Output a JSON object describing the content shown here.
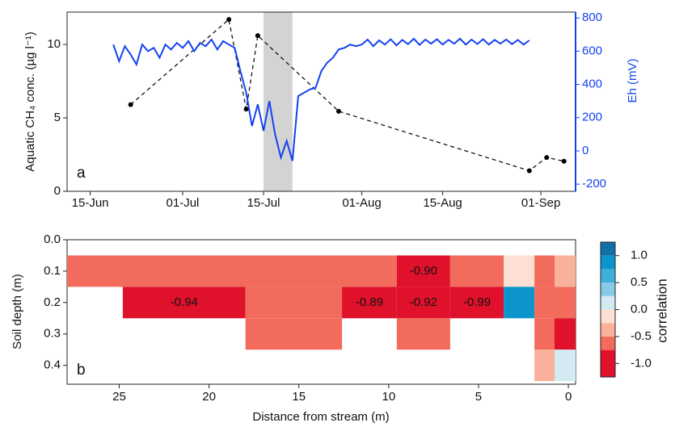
{
  "chart_data": [
    {
      "type": "line",
      "panel_label": "a",
      "y_label": "Aquatic CH₄ conc. (µg l⁻¹)",
      "y2_label": "Eh (mV)",
      "xlim": [
        "11-Jun",
        "07-Sep"
      ],
      "xticks": [
        "15-Jun",
        "01-Jul",
        "15-Jul",
        "01-Aug",
        "15-Aug",
        "01-Sep"
      ],
      "ylim": [
        0,
        12.2
      ],
      "yticks": [
        0,
        5,
        10
      ],
      "y2lim": [
        -243,
        835
      ],
      "y2ticks": [
        -200,
        0,
        200,
        400,
        600,
        800
      ],
      "shaded_span": [
        "15-Jul",
        "20-Jul"
      ],
      "shade_color": "#d3d3d3",
      "series": [
        {
          "color": "#000000",
          "dashed": true,
          "markers": true,
          "axis": "y",
          "x": [
            "22-Jun",
            "09-Jul",
            "12-Jul",
            "14-Jul",
            "28-Jul",
            "30-Aug",
            "02-Sep",
            "05-Sep"
          ],
          "values": [
            5.9,
            11.7,
            5.6,
            10.6,
            5.45,
            1.4,
            2.3,
            2.05
          ]
        },
        {
          "color": "#1443f0",
          "dashed": false,
          "markers": false,
          "axis": "y2",
          "x": [
            "19-Jun",
            "20-Jun",
            "21-Jun",
            "22-Jun",
            "23-Jun",
            "24-Jun",
            "25-Jun",
            "26-Jun",
            "27-Jun",
            "28-Jun",
            "29-Jun",
            "30-Jun",
            "01-Jul",
            "02-Jul",
            "03-Jul",
            "04-Jul",
            "05-Jul",
            "06-Jul",
            "07-Jul",
            "08-Jul",
            "09-Jul",
            "10-Jul",
            "11-Jul",
            "12-Jul",
            "13-Jul",
            "14-Jul",
            "15-Jul",
            "16-Jul",
            "17-Jul",
            "18-Jul",
            "19-Jul",
            "20-Jul",
            "21-Jul",
            "22-Jul",
            "23-Jul",
            "24-Jul",
            "25-Jul",
            "26-Jul",
            "27-Jul",
            "28-Jul",
            "29-Jul",
            "30-Jul",
            "31-Jul",
            "01-Aug",
            "02-Aug",
            "03-Aug",
            "04-Aug",
            "05-Aug",
            "06-Aug",
            "07-Aug",
            "08-Aug",
            "09-Aug",
            "10-Aug",
            "11-Aug",
            "12-Aug",
            "13-Aug",
            "14-Aug",
            "15-Aug",
            "16-Aug",
            "17-Aug",
            "18-Aug",
            "19-Aug",
            "20-Aug",
            "21-Aug",
            "22-Aug",
            "23-Aug",
            "24-Aug",
            "25-Aug",
            "26-Aug",
            "27-Aug",
            "28-Aug",
            "29-Aug",
            "30-Aug"
          ],
          "values": [
            640,
            540,
            630,
            580,
            520,
            640,
            600,
            620,
            560,
            640,
            610,
            650,
            620,
            660,
            600,
            650,
            630,
            670,
            610,
            660,
            640,
            620,
            480,
            350,
            150,
            280,
            120,
            300,
            100,
            -40,
            60,
            -60,
            330,
            350,
            370,
            380,
            480,
            530,
            560,
            610,
            620,
            640,
            630,
            640,
            670,
            630,
            665,
            640,
            672,
            635,
            668,
            642,
            675,
            638,
            670,
            645,
            672,
            640,
            668,
            645,
            675,
            640,
            670,
            643,
            672,
            640,
            668,
            645,
            670,
            642,
            668,
            640,
            665
          ]
        }
      ]
    },
    {
      "type": "heatmap",
      "panel_label": "b",
      "x_label": "Distance from stream (m)",
      "y_label": "Soil depth (m)",
      "colorbar_label": "correlation",
      "xlim": [
        27.9,
        -0.4
      ],
      "xticks": [
        25,
        20,
        15,
        10,
        5,
        0
      ],
      "ylim": [
        0,
        0.46
      ],
      "yticks": [
        {
          "value": 0,
          "label": "0.0"
        },
        0.1,
        0.2,
        0.3,
        0.4
      ],
      "cell_height": 0.1,
      "cells": [
        {
          "x": [
            27.9,
            9.55
          ],
          "depth": 0.1,
          "value": -0.6
        },
        {
          "x": [
            9.55,
            6.58
          ],
          "depth": 0.1,
          "value": -0.9,
          "label": "-0.90"
        },
        {
          "x": [
            6.58,
            3.6
          ],
          "depth": 0.1,
          "value": -0.6
        },
        {
          "x": [
            3.6,
            1.89
          ],
          "depth": 0.1,
          "value": -0.1
        },
        {
          "x": [
            1.89,
            0.77
          ],
          "depth": 0.1,
          "value": -0.6
        },
        {
          "x": [
            0.77,
            -0.4
          ],
          "depth": 0.1,
          "value": -0.4
        },
        {
          "x": [
            24.8,
            17.97
          ],
          "depth": 0.2,
          "value": -0.94,
          "label": "-0.94"
        },
        {
          "x": [
            17.97,
            12.6
          ],
          "depth": 0.2,
          "value": -0.6
        },
        {
          "x": [
            12.6,
            9.55
          ],
          "depth": 0.2,
          "value": -0.89,
          "label": "-0.89"
        },
        {
          "x": [
            9.55,
            6.58
          ],
          "depth": 0.2,
          "value": -0.92,
          "label": "-0.92"
        },
        {
          "x": [
            6.58,
            3.6
          ],
          "depth": 0.2,
          "value": -0.99,
          "label": "-0.99"
        },
        {
          "x": [
            3.6,
            1.89
          ],
          "depth": 0.2,
          "value": 0.8
        },
        {
          "x": [
            1.89,
            0.77
          ],
          "depth": 0.2,
          "value": -0.6
        },
        {
          "x": [
            0.77,
            -0.4
          ],
          "depth": 0.2,
          "value": -0.6
        },
        {
          "x": [
            17.97,
            12.6
          ],
          "depth": 0.3,
          "value": -0.6
        },
        {
          "x": [
            9.55,
            6.58
          ],
          "depth": 0.3,
          "value": -0.6
        },
        {
          "x": [
            1.89,
            0.77
          ],
          "depth": 0.3,
          "value": -0.6
        },
        {
          "x": [
            0.77,
            -0.4
          ],
          "depth": 0.3,
          "value": -0.9
        },
        {
          "x": [
            1.89,
            0.77
          ],
          "depth": 0.4,
          "value": -0.4
        },
        {
          "x": [
            0.77,
            -0.4
          ],
          "depth": 0.4,
          "value": 0.1
        }
      ],
      "colorbar": {
        "breaks": [
          -1.25,
          -0.75,
          -0.5,
          -0.25,
          0,
          0.25,
          0.5,
          0.75,
          1.0,
          1.25
        ],
        "colors": [
          "#e0112b",
          "#f26b5c",
          "#f9b19b",
          "#fde0d3",
          "#d3eaf3",
          "#86cbe3",
          "#3eb0da",
          "#0b95cc",
          "#1170a6"
        ],
        "ticks": [
          {
            "value": 1,
            "label": "1.0"
          },
          0.5,
          {
            "value": 0,
            "label": "0.0"
          },
          -0.5,
          {
            "value": -1,
            "label": "-1.0"
          }
        ]
      }
    }
  ]
}
